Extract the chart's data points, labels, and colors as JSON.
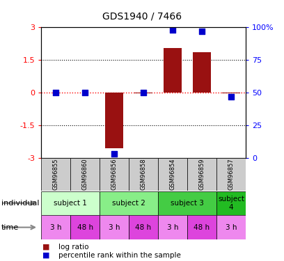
{
  "title": "GDS1940 / 7466",
  "samples": [
    "GSM96855",
    "GSM96860",
    "GSM96856",
    "GSM96858",
    "GSM96854",
    "GSM96859",
    "GSM96857"
  ],
  "log_ratio": [
    0.0,
    0.0,
    -2.55,
    -0.04,
    2.05,
    1.85,
    -0.04
  ],
  "percentile_rank": [
    50,
    50,
    3,
    50,
    98,
    97,
    47
  ],
  "individuals": [
    {
      "label": "subject 1",
      "span": [
        0,
        2
      ],
      "color": "#ccffcc"
    },
    {
      "label": "subject 2",
      "span": [
        2,
        4
      ],
      "color": "#88ee88"
    },
    {
      "label": "subject 3",
      "span": [
        4,
        6
      ],
      "color": "#44cc44"
    },
    {
      "label": "subject\n4",
      "span": [
        6,
        7
      ],
      "color": "#22bb22"
    }
  ],
  "times": [
    "3 h",
    "48 h",
    "3 h",
    "48 h",
    "3 h",
    "48 h",
    "3 h"
  ],
  "time_colors": [
    "#ee88ee",
    "#dd44dd",
    "#ee88ee",
    "#dd44dd",
    "#ee88ee",
    "#dd44dd",
    "#ee88ee"
  ],
  "ylim": [
    -3,
    3
  ],
  "bar_color": "#991111",
  "dot_color": "#0000cc",
  "left_yticks": [
    -3,
    -1.5,
    0,
    1.5,
    3
  ],
  "right_yticks": [
    0,
    25,
    50,
    75,
    100
  ],
  "left_yticklabels": [
    "-3",
    "-1.5",
    "0",
    "1.5",
    "3"
  ],
  "right_yticklabels": [
    "0",
    "25",
    "50",
    "75",
    "100%"
  ],
  "background_color": "#ffffff",
  "sample_bg": "#cccccc",
  "bar_width": 0.6
}
